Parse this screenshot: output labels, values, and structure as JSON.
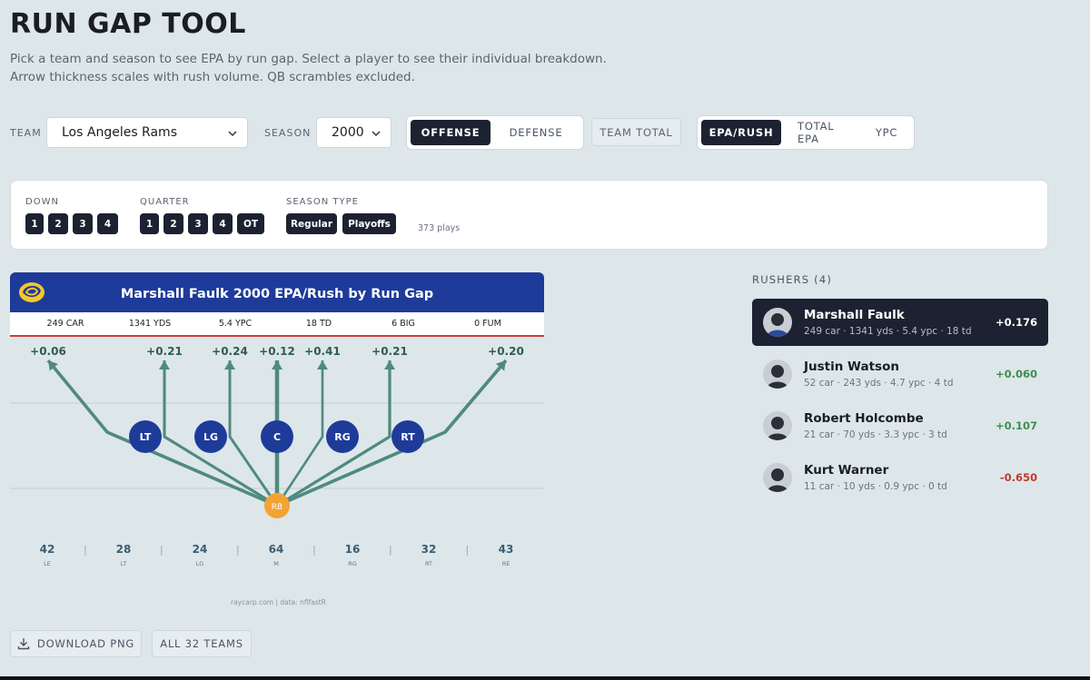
{
  "page": {
    "title": "RUN GAP TOOL",
    "subtitle": "Pick a team and season to see EPA by run gap. Select a player to see their individual breakdown. Arrow thickness scales with rush volume. QB scrambles excluded."
  },
  "controls": {
    "team_label": "TEAM",
    "team_value": "Los Angeles Rams",
    "season_label": "SEASON",
    "season_value": "2000",
    "side_options": [
      "OFFENSE",
      "DEFENSE"
    ],
    "side_selected": "OFFENSE",
    "team_total": "TEAM TOTAL",
    "metric_options": [
      "EPA/RUSH",
      "TOTAL EPA",
      "YPC"
    ],
    "metric_selected": "EPA/RUSH"
  },
  "filters": {
    "down_label": "DOWN",
    "downs": [
      "1",
      "2",
      "3",
      "4"
    ],
    "quarter_label": "QUARTER",
    "quarters": [
      "1",
      "2",
      "3",
      "4",
      "OT"
    ],
    "season_type_label": "SEASON TYPE",
    "season_types": [
      "Regular",
      "Playoffs"
    ],
    "plays": "373 plays"
  },
  "chart": {
    "title": "Marshall Faulk 2000 EPA/Rush by Run Gap",
    "stats": [
      "249 CAR",
      "1341 YDS",
      "5.4 YPC",
      "18 TD",
      "6 BIG",
      "0 FUM"
    ],
    "linemen": [
      "LT",
      "LG",
      "C",
      "RG",
      "RT"
    ],
    "back": "RB",
    "credit": "raycarp.com | data: nflfastR",
    "colors": {
      "header": "#1e3b9a",
      "arrow": "#4f8a7e",
      "lineman": "#1e3b9a",
      "rb": "#f3a234",
      "rule": "#d23b3b"
    }
  },
  "chart_data": {
    "type": "bar",
    "title": "Marshall Faulk 2000 EPA/Rush by Run Gap",
    "categories": [
      "LE",
      "LT",
      "LG",
      "M",
      "RG",
      "RT",
      "RE"
    ],
    "epa_labels": [
      "+0.06",
      "+0.21",
      "+0.24",
      "+0.12",
      "+0.41",
      "+0.21",
      "+0.20"
    ],
    "values": [
      0.06,
      0.21,
      0.24,
      0.12,
      0.41,
      0.21,
      0.2
    ],
    "counts": [
      42,
      28,
      24,
      64,
      16,
      32,
      43
    ]
  },
  "buttons": {
    "download": "DOWNLOAD PNG",
    "all_teams": "ALL 32 TEAMS"
  },
  "rushers": {
    "label": "RUSHERS (4)",
    "items": [
      {
        "name": "Marshall Faulk",
        "line": "249 car · 1341 yds · 5.4 ypc · 18 td",
        "val": "+0.176",
        "color": "#ffffff"
      },
      {
        "name": "Justin Watson",
        "line": "52 car · 243 yds · 4.7 ypc · 4 td",
        "val": "+0.060",
        "color": "#3e8e4e"
      },
      {
        "name": "Robert Holcombe",
        "line": "21 car · 70 yds · 3.3 ypc · 3 td",
        "val": "+0.107",
        "color": "#3e8e4e"
      },
      {
        "name": "Kurt Warner",
        "line": "11 car · 10 yds · 0.9 ypc · 0 td",
        "val": "-0.650",
        "color": "#c0392b"
      }
    ]
  }
}
